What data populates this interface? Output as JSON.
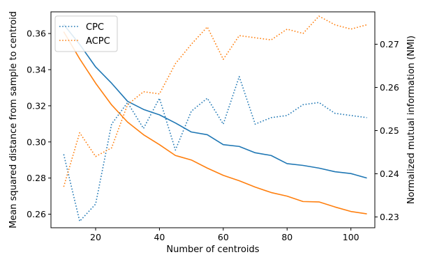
{
  "chart_data": {
    "type": "line",
    "xlabel": "Number of centroids",
    "ylabel_left": "Mean squared distance from sample to centroid",
    "ylabel_right": "Normalized mutual information (NMI)",
    "xlim": [
      6,
      107.5
    ],
    "ylim_left": [
      0.2525,
      0.372
    ],
    "ylim_right": [
      0.2275,
      0.2775
    ],
    "xticks": [
      20,
      40,
      60,
      80,
      100
    ],
    "yticks_left": [
      0.26,
      0.28,
      0.3,
      0.32,
      0.34,
      0.36
    ],
    "yticks_right": [
      0.23,
      0.24,
      0.25,
      0.26,
      0.27
    ],
    "legend": {
      "placement": "top-left",
      "entries": [
        "CPC",
        "ACPC"
      ]
    },
    "x": [
      10,
      15,
      20,
      25,
      30,
      35,
      40,
      45,
      50,
      55,
      60,
      65,
      70,
      75,
      80,
      85,
      90,
      95,
      100,
      105
    ],
    "series": [
      {
        "name": "CPC",
        "color": "#1f77b4",
        "axis": "left",
        "style": "solid",
        "values": [
          0.365,
          0.354,
          0.3415,
          0.3325,
          0.3225,
          0.318,
          0.315,
          0.3105,
          0.3055,
          0.304,
          0.2985,
          0.2975,
          0.294,
          0.2925,
          0.288,
          0.287,
          0.2855,
          0.2835,
          0.2825,
          0.28
        ]
      },
      {
        "name": "ACPC",
        "color": "#ff7f0e",
        "axis": "left",
        "style": "solid",
        "values": [
          0.361,
          0.346,
          0.3325,
          0.3205,
          0.311,
          0.304,
          0.2985,
          0.2925,
          0.29,
          0.2855,
          0.2815,
          0.2785,
          0.275,
          0.272,
          0.27,
          0.267,
          0.2668,
          0.264,
          0.2615,
          0.2602
        ]
      },
      {
        "name": "CPC",
        "color": "#1f77b4",
        "axis": "right",
        "style": "dotted",
        "values": [
          0.2445,
          0.229,
          0.233,
          0.2515,
          0.2565,
          0.2505,
          0.2575,
          0.2455,
          0.2545,
          0.2575,
          0.2515,
          0.2625,
          0.2515,
          0.253,
          0.2535,
          0.256,
          0.2565,
          0.254,
          0.2535,
          0.253
        ]
      },
      {
        "name": "ACPC",
        "color": "#ff7f0e",
        "axis": "right",
        "style": "dotted",
        "values": [
          0.237,
          0.2495,
          0.244,
          0.246,
          0.256,
          0.259,
          0.2585,
          0.2655,
          0.27,
          0.274,
          0.2665,
          0.272,
          0.2715,
          0.271,
          0.2735,
          0.2725,
          0.2765,
          0.2745,
          0.2735,
          0.2745
        ]
      }
    ]
  }
}
